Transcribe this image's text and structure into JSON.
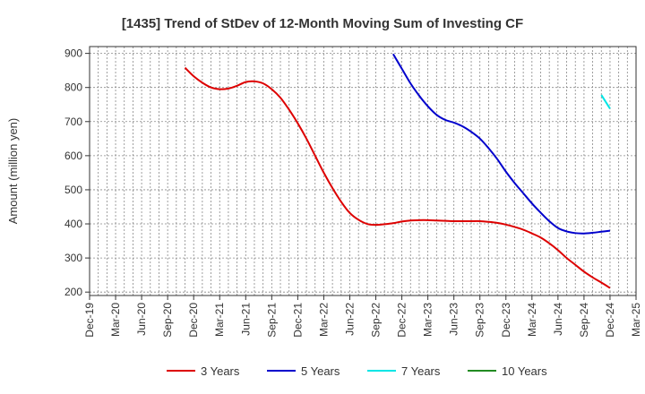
{
  "chart_data": {
    "type": "line",
    "title": "[1435]  Trend of StDev of 12-Month Moving Sum of Investing CF",
    "xlabel": "",
    "ylabel": "Amount (million yen)",
    "ylim": [
      190,
      920
    ],
    "yticks": [
      200,
      300,
      400,
      500,
      600,
      700,
      800,
      900
    ],
    "xlim": [
      "2019-12",
      "2025-03"
    ],
    "xticks": [
      "Dec-19",
      "Mar-20",
      "Jun-20",
      "Sep-20",
      "Dec-20",
      "Mar-21",
      "Jun-21",
      "Sep-21",
      "Dec-21",
      "Mar-22",
      "Jun-22",
      "Sep-22",
      "Dec-22",
      "Mar-23",
      "Jun-23",
      "Sep-23",
      "Dec-23",
      "Mar-24",
      "Jun-24",
      "Sep-24",
      "Dec-24",
      "Mar-25"
    ],
    "grid": true,
    "legend_position": "bottom",
    "series": [
      {
        "name": "3 Years",
        "color": "#dd0000",
        "x": [
          "2020-11",
          "2020-12",
          "2021-01",
          "2021-02",
          "2021-03",
          "2021-04",
          "2021-05",
          "2021-06",
          "2021-07",
          "2021-08",
          "2021-09",
          "2021-10",
          "2021-11",
          "2021-12",
          "2022-01",
          "2022-02",
          "2022-03",
          "2022-04",
          "2022-05",
          "2022-06",
          "2022-07",
          "2022-08",
          "2022-09",
          "2022-10",
          "2022-11",
          "2022-12",
          "2023-01",
          "2023-02",
          "2023-03",
          "2023-04",
          "2023-05",
          "2023-06",
          "2023-07",
          "2023-08",
          "2023-09",
          "2023-10",
          "2023-11",
          "2023-12",
          "2024-01",
          "2024-02",
          "2024-03",
          "2024-04",
          "2024-05",
          "2024-06",
          "2024-07",
          "2024-08",
          "2024-09",
          "2024-10",
          "2024-11",
          "2024-12"
        ],
        "values": [
          858,
          833,
          814,
          800,
          795,
          797,
          805,
          816,
          818,
          812,
          795,
          770,
          735,
          695,
          650,
          600,
          550,
          505,
          465,
          432,
          412,
          400,
          397,
          399,
          402,
          407,
          410,
          411,
          411,
          410,
          409,
          408,
          408,
          408,
          408,
          406,
          403,
          398,
          391,
          383,
          372,
          360,
          343,
          323,
          300,
          280,
          260,
          243,
          228,
          212
        ]
      },
      {
        "name": "5 Years",
        "color": "#0000cc",
        "x": [
          "2022-11",
          "2022-12",
          "2023-01",
          "2023-02",
          "2023-03",
          "2023-04",
          "2023-05",
          "2023-06",
          "2023-07",
          "2023-08",
          "2023-09",
          "2023-10",
          "2023-11",
          "2023-12",
          "2024-01",
          "2024-02",
          "2024-03",
          "2024-04",
          "2024-05",
          "2024-06",
          "2024-07",
          "2024-08",
          "2024-09",
          "2024-10",
          "2024-11",
          "2024-12"
        ],
        "values": [
          898,
          855,
          812,
          776,
          745,
          720,
          705,
          697,
          686,
          670,
          650,
          622,
          590,
          553,
          520,
          490,
          460,
          433,
          408,
          388,
          378,
          373,
          372,
          374,
          377,
          380
        ]
      },
      {
        "name": "7 Years",
        "color": "#00e5e5",
        "x": [
          "2024-11",
          "2024-12"
        ],
        "values": [
          778,
          738
        ]
      },
      {
        "name": "10 Years",
        "color": "#228b22",
        "x": [],
        "values": []
      }
    ]
  }
}
